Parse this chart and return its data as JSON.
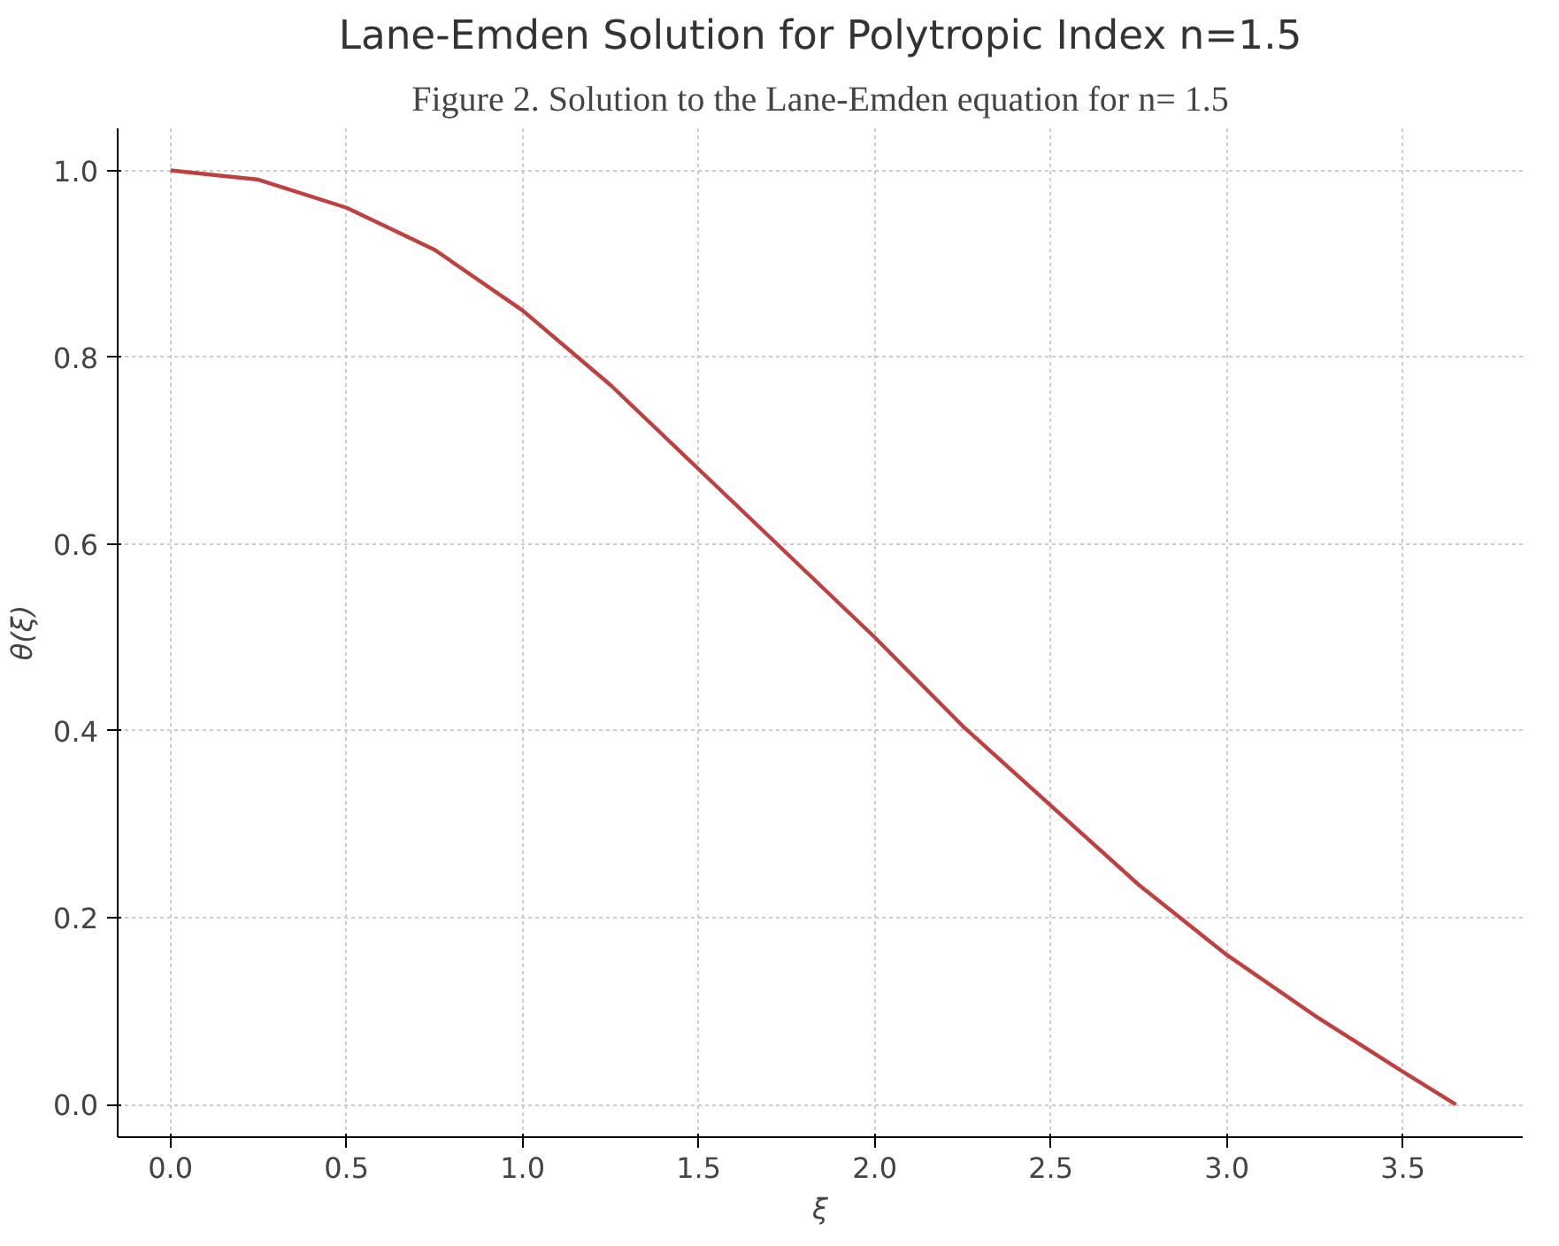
{
  "chart_data": {
    "type": "line",
    "title": "Lane-Emden Solution for Polytropic Index n=1.5",
    "annotations": [
      "Figure 2. Solution to the Lane-Emden equation for n= 1.5"
    ],
    "xlabel": "ξ",
    "ylabel": "θ(ξ)",
    "x": [
      0,
      0.25,
      0.5,
      0.75,
      1.0,
      1.25,
      1.5,
      1.75,
      2.0,
      2.25,
      2.5,
      2.75,
      3.0,
      3.25,
      3.5,
      3.65
    ],
    "series": [
      {
        "color": "#c0403f",
        "values": [
          1.0,
          0.99,
          0.96,
          0.915,
          0.85,
          0.77,
          0.68,
          0.59,
          0.5,
          0.405,
          0.32,
          0.235,
          0.16,
          0.095,
          0.035,
          0.0
        ]
      }
    ],
    "xlim": [
      -0.15,
      3.84
    ],
    "ylim": [
      -0.035,
      1.045
    ],
    "xticks": [
      {
        "value": 0,
        "label": "0.0"
      },
      0.5,
      {
        "value": 1,
        "label": "1.0"
      },
      1.5,
      {
        "value": 2,
        "label": "2.0"
      },
      2.5,
      {
        "value": 3,
        "label": "3.0"
      },
      3.5
    ],
    "yticks": [
      {
        "value": 0,
        "label": "0.0"
      },
      0.2,
      0.4,
      0.6,
      0.8,
      {
        "value": 1,
        "label": "1.0"
      }
    ],
    "grid": true,
    "line_style": "solid",
    "marker": "none"
  }
}
